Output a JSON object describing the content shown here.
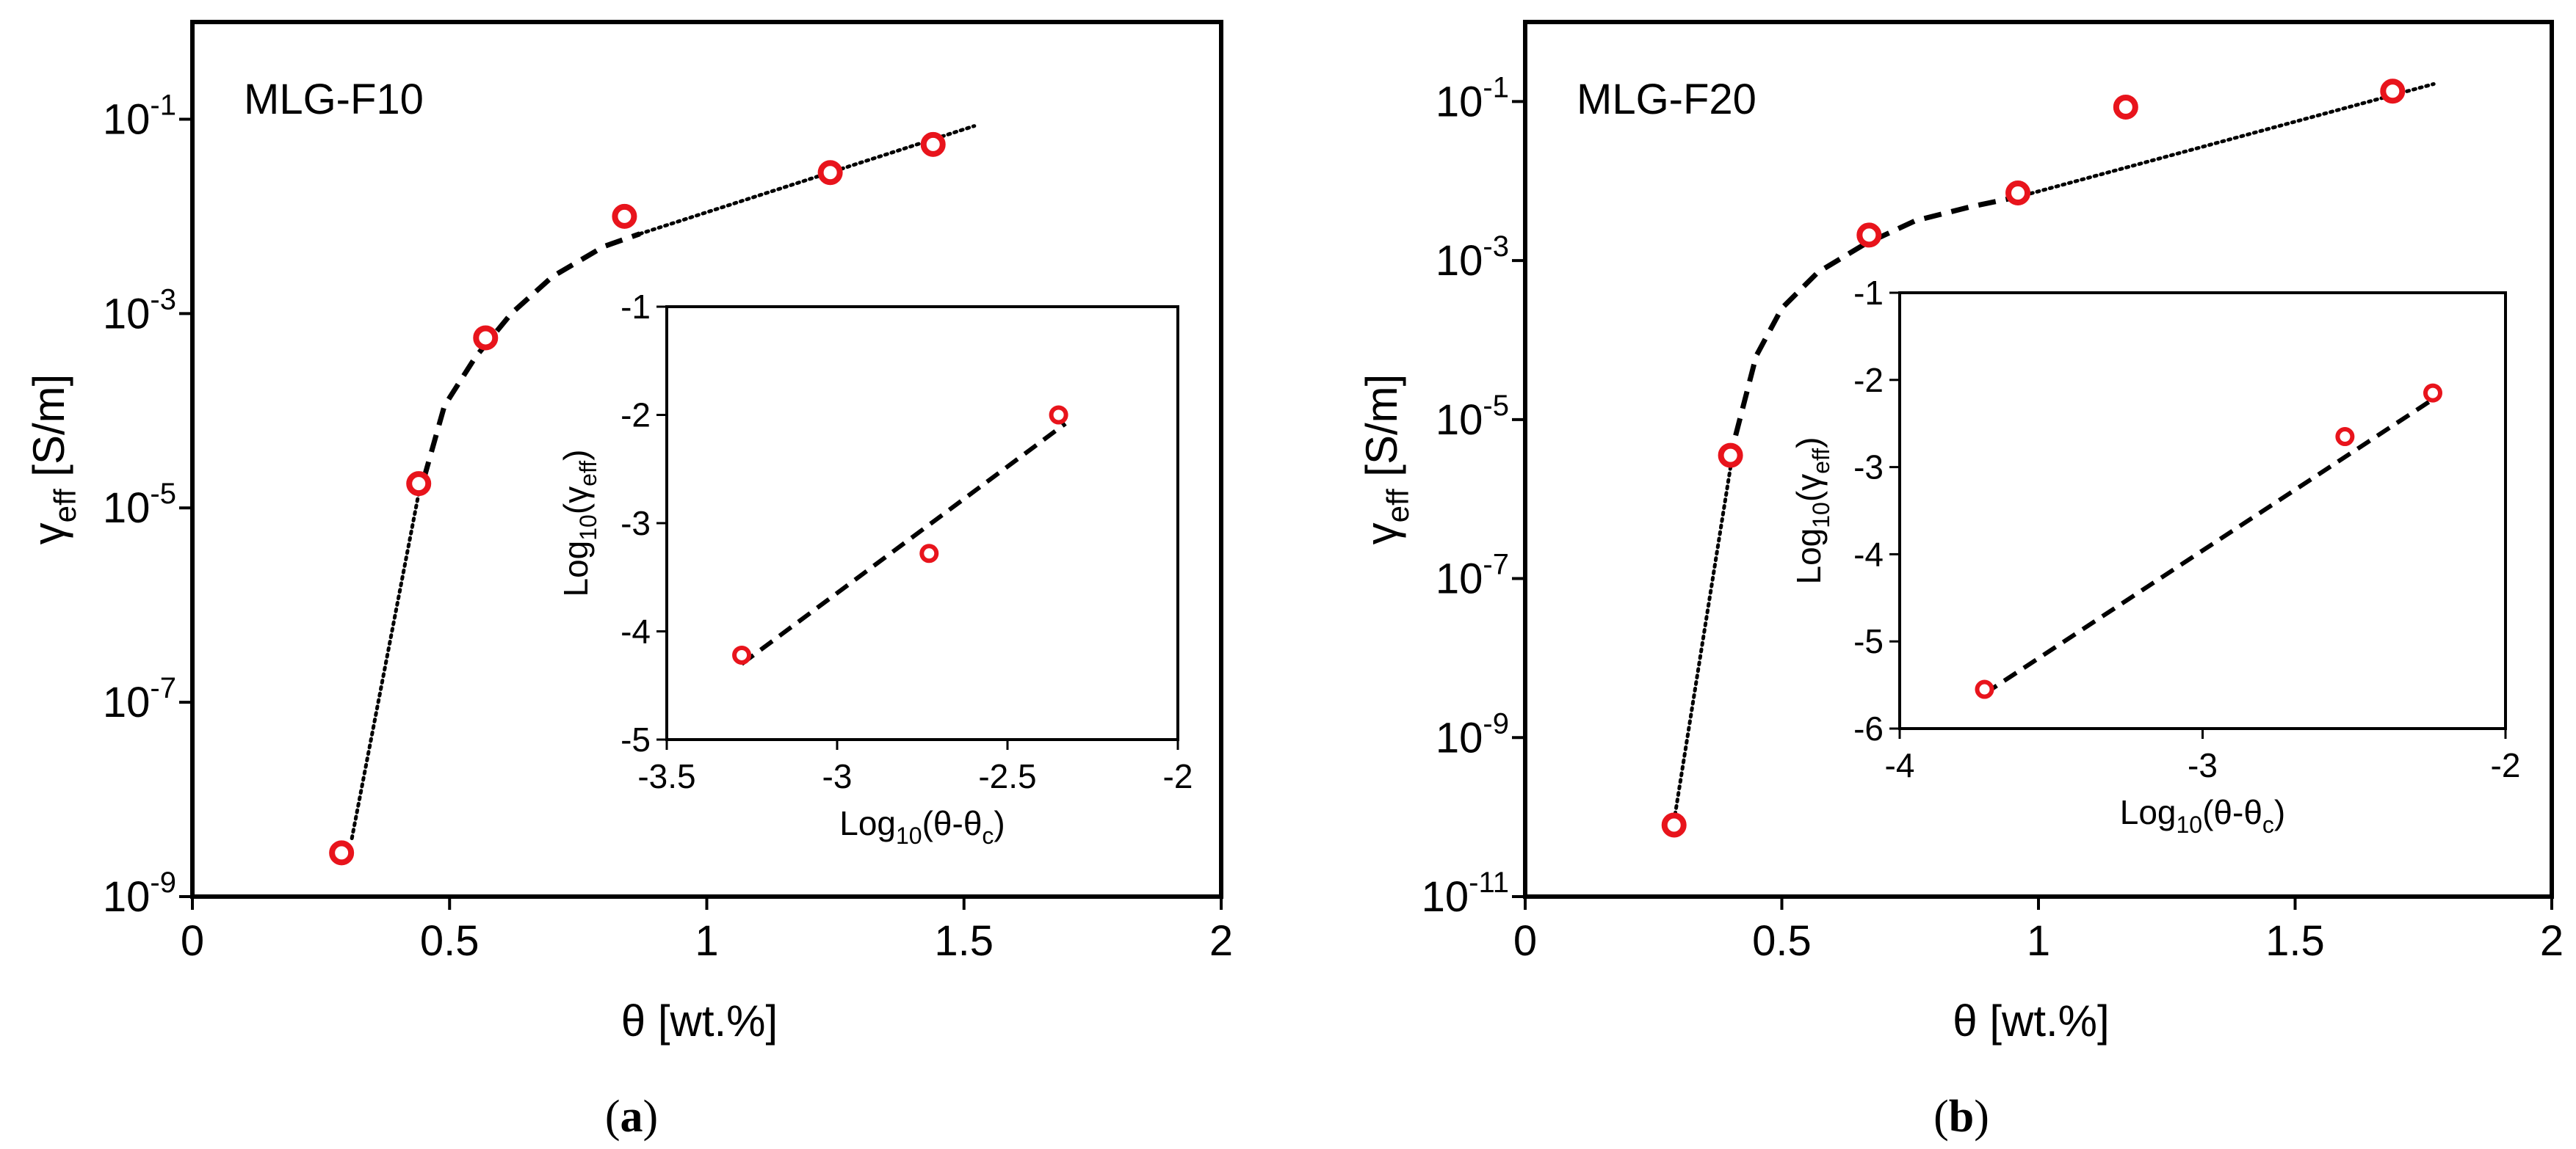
{
  "chart_data": [
    {
      "panel": "a",
      "type": "scatter",
      "sample_label": "MLG-F10",
      "caption_letter": "a",
      "xlabel": "θ [wt.%]",
      "ylabel_main": "γ",
      "ylabel_sub": "eff",
      "ylabel_unit": " [S/m]",
      "y_scale": "log",
      "xlim": [
        0,
        2
      ],
      "ylim_log10": [
        -9,
        0
      ],
      "x_ticks": [
        "0",
        "0.5",
        "1",
        "1.5",
        "2"
      ],
      "y_tick_exponents": [
        "-1",
        "-3",
        "-5",
        "-7",
        "-9"
      ],
      "points": [
        {
          "x": 0.29,
          "y_log10": -8.55
        },
        {
          "x": 0.44,
          "y_log10": -4.75
        },
        {
          "x": 0.57,
          "y_log10": -3.25
        },
        {
          "x": 0.84,
          "y_log10": -2.0
        },
        {
          "x": 1.24,
          "y_log10": -1.55
        },
        {
          "x": 1.44,
          "y_log10": -1.26
        }
      ],
      "fit_dotted_low": [
        [
          0.31,
          -8.4
        ],
        [
          0.44,
          -4.85
        ]
      ],
      "fit_dashed": [
        [
          0.45,
          -4.7
        ],
        [
          0.49,
          -3.95
        ],
        [
          0.55,
          -3.45
        ],
        [
          0.62,
          -3.0
        ],
        [
          0.7,
          -2.62
        ],
        [
          0.8,
          -2.31
        ],
        [
          0.87,
          -2.18
        ]
      ],
      "fit_dotted_high": [
        [
          0.87,
          -2.18
        ],
        [
          1.52,
          -1.07
        ]
      ],
      "legend_position": "top-left",
      "inset": {
        "xlabel": "Log10(θ-θc)",
        "ylabel": "Log10(γeff)",
        "xlim": [
          -3.5,
          -2
        ],
        "ylim": [
          -5,
          -1
        ],
        "x_ticks": [
          "-3.5",
          "-3",
          "-2.5",
          "-2"
        ],
        "y_ticks": [
          "-1",
          "-2",
          "-3",
          "-4",
          "-5"
        ],
        "points": [
          {
            "x": -3.28,
            "y": -4.22
          },
          {
            "x": -2.73,
            "y": -3.28
          },
          {
            "x": -2.35,
            "y": -2.0
          }
        ],
        "fit": [
          [
            -3.28,
            -4.3
          ],
          [
            -2.33,
            -2.08
          ]
        ]
      }
    },
    {
      "panel": "b",
      "type": "scatter",
      "sample_label": "MLG-F20",
      "caption_letter": "b",
      "xlabel": "θ [wt.%]",
      "ylabel_main": "γ",
      "ylabel_sub": "eff",
      "ylabel_unit": " [S/m]",
      "y_scale": "log",
      "xlim": [
        0,
        2
      ],
      "ylim_log10": [
        -11,
        0
      ],
      "x_ticks": [
        "0",
        "0.5",
        "1",
        "1.5",
        "2"
      ],
      "y_tick_exponents": [
        "-1",
        "-3",
        "-5",
        "-7",
        "-9",
        "-11"
      ],
      "points": [
        {
          "x": 0.29,
          "y_log10": -10.1
        },
        {
          "x": 0.4,
          "y_log10": -5.45
        },
        {
          "x": 0.67,
          "y_log10": -2.68
        },
        {
          "x": 0.96,
          "y_log10": -2.15
        },
        {
          "x": 1.17,
          "y_log10": -1.07
        },
        {
          "x": 1.69,
          "y_log10": -0.87
        }
      ],
      "fit_dotted_low": [
        [
          0.29,
          -10.05
        ],
        [
          0.4,
          -5.6
        ]
      ],
      "fit_dashed": [
        [
          0.41,
          -5.2
        ],
        [
          0.45,
          -4.2
        ],
        [
          0.5,
          -3.6
        ],
        [
          0.57,
          -3.15
        ],
        [
          0.66,
          -2.8
        ],
        [
          0.76,
          -2.5
        ],
        [
          0.87,
          -2.32
        ],
        [
          0.96,
          -2.2
        ]
      ],
      "fit_dotted_high": [
        [
          0.96,
          -2.2
        ],
        [
          1.77,
          -0.78
        ]
      ],
      "legend_position": "top-left",
      "inset": {
        "xlabel": "Log10(θ-θc)",
        "ylabel": "Log10(γeff)",
        "xlim": [
          -4,
          -2
        ],
        "ylim": [
          -6,
          -1
        ],
        "x_ticks": [
          "-4",
          "-3",
          "-2"
        ],
        "y_ticks": [
          "-1",
          "-2",
          "-3",
          "-4",
          "-5",
          "-6"
        ],
        "points": [
          {
            "x": -3.72,
            "y": -5.55
          },
          {
            "x": -2.53,
            "y": -2.65
          },
          {
            "x": -2.24,
            "y": -2.15
          }
        ],
        "fit": [
          [
            -3.72,
            -5.6
          ],
          [
            -2.23,
            -2.2
          ]
        ]
      }
    }
  ]
}
